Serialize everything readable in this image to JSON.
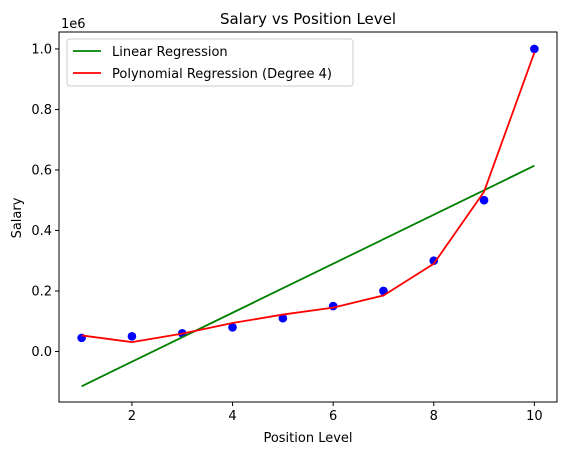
{
  "chart_data": {
    "type": "scatter",
    "title": "Salary vs Position Level",
    "xlabel": "Position Level",
    "ylabel": "Salary",
    "y_offset_label": "1e6",
    "xlim": [
      0.55,
      10.45
    ],
    "ylim": [
      -0.167,
      1.056
    ],
    "x_ticks": [
      2,
      4,
      6,
      8,
      10
    ],
    "x_tick_labels": [
      "2",
      "4",
      "6",
      "8",
      "10"
    ],
    "y_ticks": [
      0.0,
      0.2,
      0.4,
      0.6,
      0.8,
      1.0
    ],
    "y_tick_labels": [
      "0.0",
      "0.2",
      "0.4",
      "0.6",
      "0.8",
      "1.0"
    ],
    "grid": false,
    "legend_position": "upper-left",
    "scatter": {
      "color": "#0000ff",
      "x": [
        1,
        2,
        3,
        4,
        5,
        6,
        7,
        8,
        9,
        10
      ],
      "y": [
        0.045,
        0.05,
        0.06,
        0.08,
        0.11,
        0.15,
        0.2,
        0.3,
        0.5,
        1.0
      ]
    },
    "series": [
      {
        "name": "Linear Regression",
        "color": "#008000",
        "x": [
          1,
          10
        ],
        "y": [
          -0.115,
          0.614
        ]
      },
      {
        "name": "Polynomial Regression (Degree 4)",
        "color": "#ff0000",
        "x": [
          1,
          2,
          3,
          4,
          5,
          6,
          7,
          8,
          9,
          10
        ],
        "y": [
          0.053,
          0.031,
          0.059,
          0.094,
          0.122,
          0.145,
          0.185,
          0.29,
          0.528,
          0.988
        ]
      }
    ]
  }
}
